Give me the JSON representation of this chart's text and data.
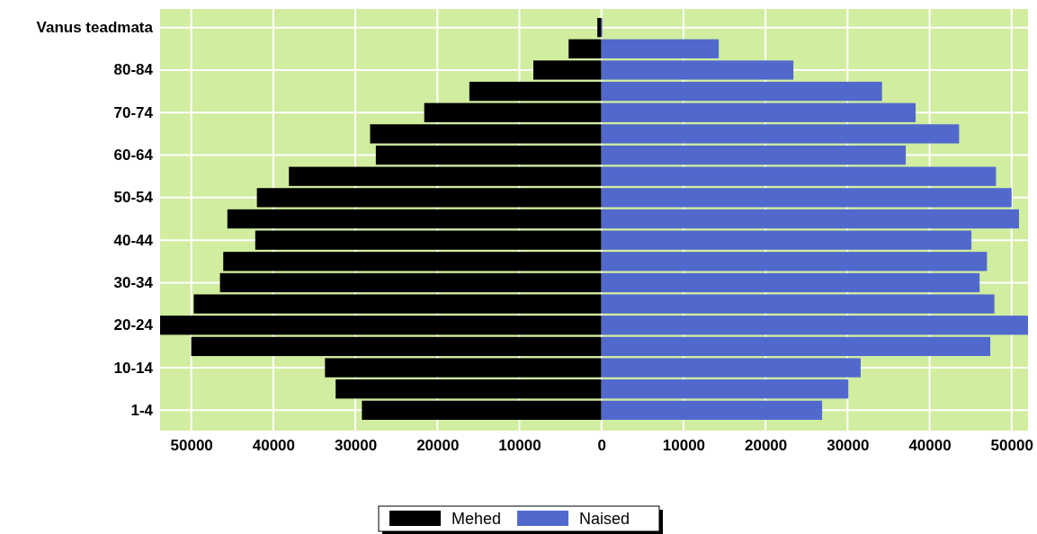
{
  "chart_data": {
    "type": "bar",
    "orientation": "horizontal",
    "categories": [
      "Vanus teadmata",
      null,
      "80-84",
      null,
      "70-74",
      null,
      "60-64",
      null,
      "50-54",
      null,
      "40-44",
      null,
      "30-34",
      null,
      "20-24",
      null,
      "10-14",
      null,
      "1-4"
    ],
    "series": [
      {
        "name": "Mehed",
        "color": "#000000",
        "values": [
          -500,
          -4000,
          -8300,
          -16100,
          -21600,
          -28200,
          -27500,
          -38100,
          -42000,
          -45600,
          -42200,
          -46100,
          -46500,
          -49700,
          -53800,
          -50000,
          -33700,
          -32400,
          -29200
        ]
      },
      {
        "name": "Naised",
        "color": "#5169cd",
        "values": [
          100,
          14300,
          23400,
          34200,
          38300,
          43600,
          37100,
          48100,
          50000,
          50900,
          45100,
          47000,
          46100,
          47900,
          52000,
          47400,
          31600,
          30100,
          26900
        ]
      }
    ],
    "xlim": [
      -53800,
      52000
    ],
    "xticks": [
      {
        "value": -50000,
        "label": "50000"
      },
      {
        "value": -40000,
        "label": "40000"
      },
      {
        "value": -30000,
        "label": "30000"
      },
      {
        "value": -20000,
        "label": "20000"
      },
      {
        "value": -10000,
        "label": "10000"
      },
      0,
      10000,
      20000,
      30000,
      40000,
      50000
    ],
    "grid": true,
    "legend": "bottom",
    "stacked": true
  }
}
